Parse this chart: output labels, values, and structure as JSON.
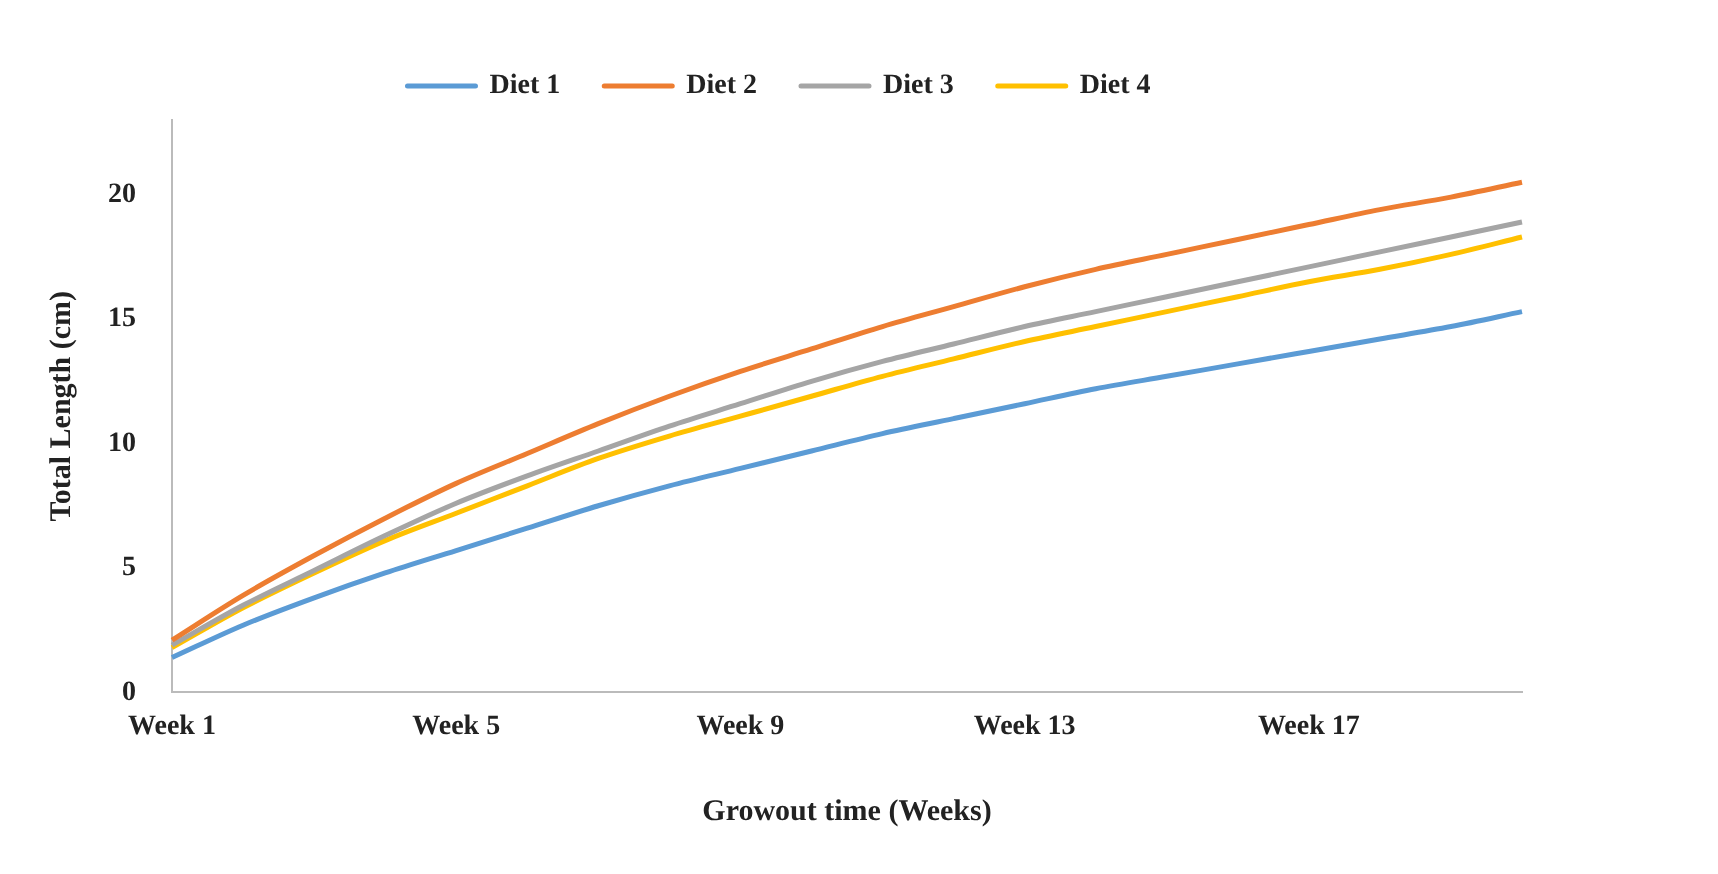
{
  "chart_data": {
    "type": "line",
    "xlabel": "Growout time (Weeks)",
    "ylabel": "Total Length (cm)",
    "categories": [
      "Week 1",
      null,
      null,
      null,
      "Week 5",
      null,
      null,
      null,
      "Week 9",
      null,
      null,
      null,
      "Week 13",
      null,
      null,
      null,
      "Week 17",
      null,
      null,
      null
    ],
    "series": [
      {
        "name": "Diet 1",
        "color": "#5b9bd5",
        "values": [
          1.4,
          2.7,
          3.8,
          4.8,
          5.7,
          6.6,
          7.5,
          8.3,
          9.0,
          9.7,
          10.4,
          11.0,
          11.6,
          12.2,
          12.7,
          13.2,
          13.7,
          14.2,
          14.7,
          15.3
        ]
      },
      {
        "name": "Diet 2",
        "color": "#ed7d31",
        "values": [
          2.1,
          3.9,
          5.5,
          7.0,
          8.4,
          9.6,
          10.8,
          11.9,
          12.9,
          13.8,
          14.7,
          15.5,
          16.3,
          17.0,
          17.6,
          18.2,
          18.8,
          19.4,
          19.9,
          20.5
        ]
      },
      {
        "name": "Diet 3",
        "color": "#a5a5a5",
        "values": [
          1.9,
          3.5,
          4.9,
          6.3,
          7.6,
          8.7,
          9.7,
          10.7,
          11.6,
          12.5,
          13.3,
          14.0,
          14.7,
          15.3,
          15.9,
          16.5,
          17.1,
          17.7,
          18.3,
          18.9
        ]
      },
      {
        "name": "Diet 4",
        "color": "#ffc000",
        "values": [
          1.8,
          3.4,
          4.8,
          6.1,
          7.2,
          8.3,
          9.4,
          10.3,
          11.1,
          11.9,
          12.7,
          13.4,
          14.1,
          14.7,
          15.3,
          15.9,
          16.5,
          17.0,
          17.6,
          18.3
        ]
      }
    ],
    "ylim": [
      0,
      23
    ],
    "yticks": [
      0,
      5,
      10,
      15,
      20
    ],
    "grid": false,
    "legend": "top",
    "marker": "none",
    "line_style": "solid"
  }
}
